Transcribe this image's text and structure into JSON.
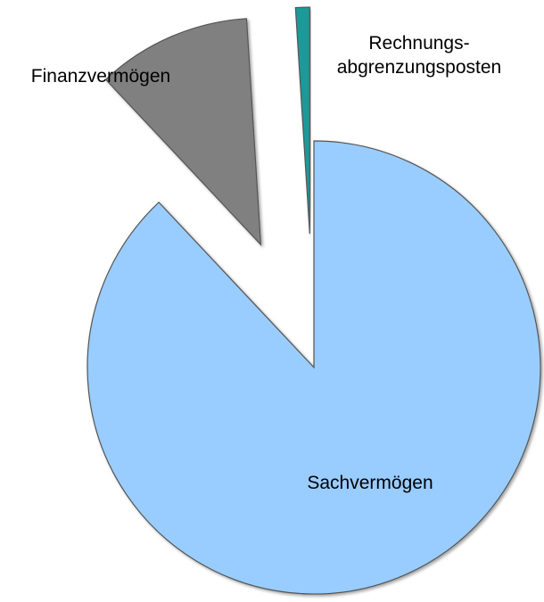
{
  "chart_data": {
    "type": "pie",
    "categories": [
      "Sachvermögen",
      "Finanzvermögen",
      "Rechnungs-\nabgrenzungsposten"
    ],
    "values": [
      88,
      11,
      1
    ],
    "colors": [
      "#99ccff",
      "#808080",
      "#1a9a9a"
    ],
    "exploded": [
      false,
      true,
      true
    ],
    "start_angle": 0,
    "direction": "clockwise"
  }
}
